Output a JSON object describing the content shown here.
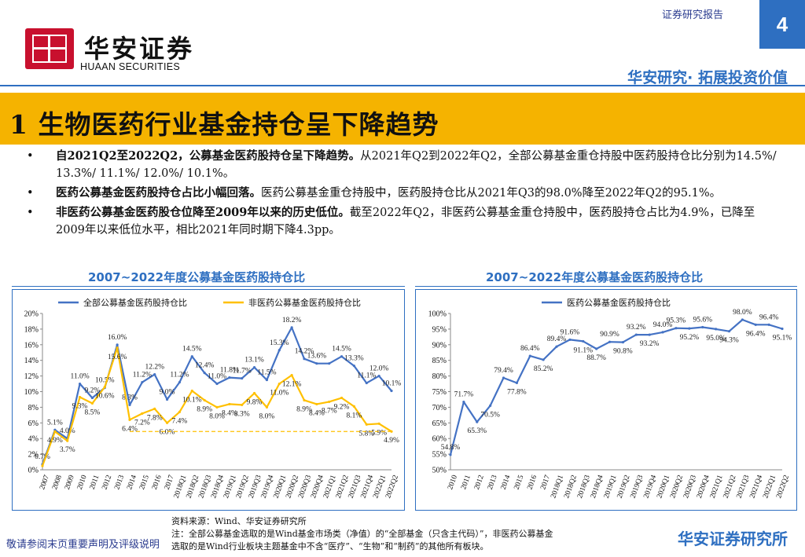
{
  "header": {
    "logo_cn": "华安证券",
    "logo_en": "HUAAN SECURITIES",
    "report_type": "证券研究报告",
    "page_number": "4",
    "slogan": "华安研究· 拓展投资价值"
  },
  "section": {
    "title": "1 生物医药行业基金持仓呈下降趋势"
  },
  "bullets": [
    {
      "bold": "自2021Q2至2022Q2，公募基金医药股持仓呈下降趋势。",
      "text": "从2021年Q2到2022年Q2，全部公募基金重仓持股中医药股持仓比分别为14.5%/ 13.3%/ 11.1%/ 12.0%/ 10.1%。"
    },
    {
      "bold": "医药公募基金医药股持仓占比小幅回落。",
      "text": "医药公募基金重仓持股中，医药股持仓比从2021年Q3的98.0%降至2022年Q2的95.1%。"
    },
    {
      "bold": "非医药公募基金医药股仓位降至2009年以来的历史低位。",
      "text": "截至2022年Q2，非医药公募基金重仓持股中，医药股持仓占比为4.9%，已降至2009年以来低位水平，相比2021年同时期下降4.3pp。"
    }
  ],
  "chart_data": [
    {
      "type": "line",
      "title": "2007~2022年度公募基金医药股持仓比",
      "x": [
        "2007",
        "2008",
        "2009",
        "2010",
        "2011",
        "2012",
        "2013",
        "2014",
        "2015",
        "2016",
        "2017",
        "2018Q1",
        "2018Q2",
        "2018Q3",
        "2018Q4",
        "2019Q1",
        "2019Q2",
        "2019Q3",
        "2019Q4",
        "2020Q1",
        "2020Q2",
        "2020Q3",
        "2020Q4",
        "2021Q1",
        "2021Q2",
        "2021Q3",
        "2021Q4",
        "2022Q1",
        "2022Q2"
      ],
      "y_ticks": [
        "0%",
        "2%",
        "4%",
        "6%",
        "8%",
        "10%",
        "12%",
        "14%",
        "16%",
        "18%",
        "20%"
      ],
      "ylim": [
        0,
        20
      ],
      "legend_position": "top",
      "series": [
        {
          "name": "全部公募基金医药股持仓比",
          "color": "#4472c4",
          "values": [
            0.7,
            5.1,
            4.0,
            11.0,
            9.2,
            10.5,
            16.0,
            8.3,
            11.2,
            12.2,
            9.0,
            11.2,
            14.5,
            12.4,
            11.0,
            11.8,
            11.7,
            13.1,
            11.5,
            15.3,
            18.2,
            14.2,
            13.6,
            13.6,
            14.5,
            13.3,
            11.1,
            12.0,
            10.1
          ],
          "labels": [
            "0.7%",
            "5.1%",
            "4.0%",
            "11.0%",
            "9.2%",
            "10.5%",
            "16.0%",
            "8.3%",
            "11.2%",
            "12.2%",
            "9.0%",
            "11.2%",
            "14.5%",
            "12.4%",
            "11.0%",
            "11.8%",
            "11.7%",
            "13.1%",
            "11.5%",
            "15.3%",
            "18.2%",
            "14.2%",
            "13.6%",
            "",
            "14.5%",
            "13.3%",
            "11.1%",
            "12.0%",
            "10.1%"
          ]
        },
        {
          "name": "非医药公募基金医药股持仓比",
          "color": "#ffc000",
          "values": [
            0.5,
            4.9,
            3.7,
            9.3,
            8.5,
            10.6,
            15.6,
            6.4,
            7.2,
            7.8,
            6.0,
            7.4,
            10.1,
            8.9,
            8.0,
            8.4,
            8.3,
            9.8,
            8.0,
            11.0,
            12.1,
            8.9,
            8.4,
            8.7,
            9.2,
            8.1,
            5.8,
            5.9,
            4.9
          ],
          "labels": [
            "",
            "4.9%",
            "3.7%",
            "9.3%",
            "8.5%",
            "10.6%",
            "15.6%",
            "6.4%",
            "7.2%",
            "7.8%",
            "6.0%",
            "7.4%",
            "10.1%",
            "8.9%",
            "8.0%",
            "8.4%",
            "8.3%",
            "9.8%",
            "8.0%",
            "11.0%",
            "12.1%",
            "8.9%",
            "8.4%",
            "8.7%",
            "9.2%",
            "8.1%",
            "5.8%",
            "5.9%",
            "4.9%"
          ]
        }
      ]
    },
    {
      "type": "line",
      "title": "2007~2022年度公募基金医药股持仓比",
      "x": [
        "2010",
        "2011",
        "2012",
        "2013",
        "2014",
        "2015",
        "2016",
        "2017",
        "2018Q1",
        "2018Q2",
        "2018Q3",
        "2018Q4",
        "2019Q1",
        "2019Q2",
        "2019Q3",
        "2019Q4",
        "2020Q1",
        "2020Q2",
        "2020Q3",
        "2020Q4",
        "2021Q1",
        "2021Q2",
        "2021Q3",
        "2021Q4",
        "2022Q1",
        "2022Q2"
      ],
      "y_ticks": [
        "50%",
        "55%",
        "60%",
        "65%",
        "70%",
        "75%",
        "80%",
        "85%",
        "90%",
        "95%",
        "100%"
      ],
      "ylim": [
        50,
        100
      ],
      "legend_position": "top",
      "series": [
        {
          "name": "医药公募基金医药股持仓比",
          "color": "#4472c4",
          "values": [
            54.8,
            71.7,
            65.3,
            70.5,
            79.4,
            77.8,
            86.4,
            85.2,
            89.4,
            91.6,
            91.1,
            88.7,
            90.9,
            90.8,
            93.2,
            93.2,
            94.0,
            95.3,
            95.2,
            95.6,
            95.0,
            94.3,
            98.0,
            96.4,
            96.4,
            95.1
          ],
          "labels": [
            "54.8%",
            "71.7%",
            "65.3%",
            "70.5%",
            "79.4%",
            "77.8%",
            "86.4%",
            "85.2%",
            "89.4%",
            "91.6%",
            "91.1%",
            "88.7%",
            "90.9%",
            "90.8%",
            "93.2%",
            "93.2%",
            "94.0%",
            "95.3%",
            "95.2%",
            "95.6%",
            "95.0%",
            "94.3%",
            "98.0%",
            "96.4%",
            "96.4%",
            "95.1%"
          ]
        }
      ]
    }
  ],
  "footer": {
    "source_line1": "资料来源：Wind、华安证券研究所",
    "source_line2": "注：全部公募基金选取的是Wind基金市场类（净值）的“全部基金（只含主代码）”，非医药公募基金",
    "source_line3": "选取的是Wind行业板块主题基金中不含“医疗”、“生物”和“制药”的其他所有板块。",
    "disclaimer": "敬请参阅末页重要声明及评级说明",
    "brand": "华安证券研究所"
  }
}
